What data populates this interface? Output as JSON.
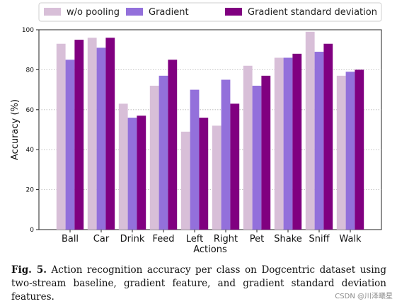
{
  "chart_data": {
    "type": "bar",
    "categories": [
      "Ball",
      "Car",
      "Drink",
      "Feed",
      "Left",
      "Right",
      "Pet",
      "Shake",
      "Sniff",
      "Walk"
    ],
    "series": [
      {
        "name": "w/o pooling",
        "color": "#d8bfd8",
        "values": [
          93,
          96,
          63,
          72,
          49,
          52,
          82,
          86,
          99,
          77
        ]
      },
      {
        "name": "Gradient",
        "color": "#9370db",
        "values": [
          85,
          91,
          56,
          77,
          70,
          75,
          72,
          86,
          89,
          79
        ]
      },
      {
        "name": "Gradient standard deviation",
        "color": "#800080",
        "values": [
          95,
          96,
          57,
          85,
          56,
          63,
          77,
          88,
          93,
          80
        ]
      }
    ],
    "title": "",
    "xlabel": "Actions",
    "ylabel": "Accuracy (%)",
    "ylim": [
      0,
      100
    ],
    "yticks": [
      "0",
      "20",
      "40",
      "60",
      "80",
      "100"
    ],
    "grid": "horizontal-dotted",
    "legend": "top"
  },
  "caption": {
    "label": "Fig. 5.",
    "text": "Action recognition accuracy per class on Dogcentric dataset using two-stream baseline, gradient feature, and gradient standard deviation features."
  },
  "watermark": "CSDN @川泽曦星"
}
